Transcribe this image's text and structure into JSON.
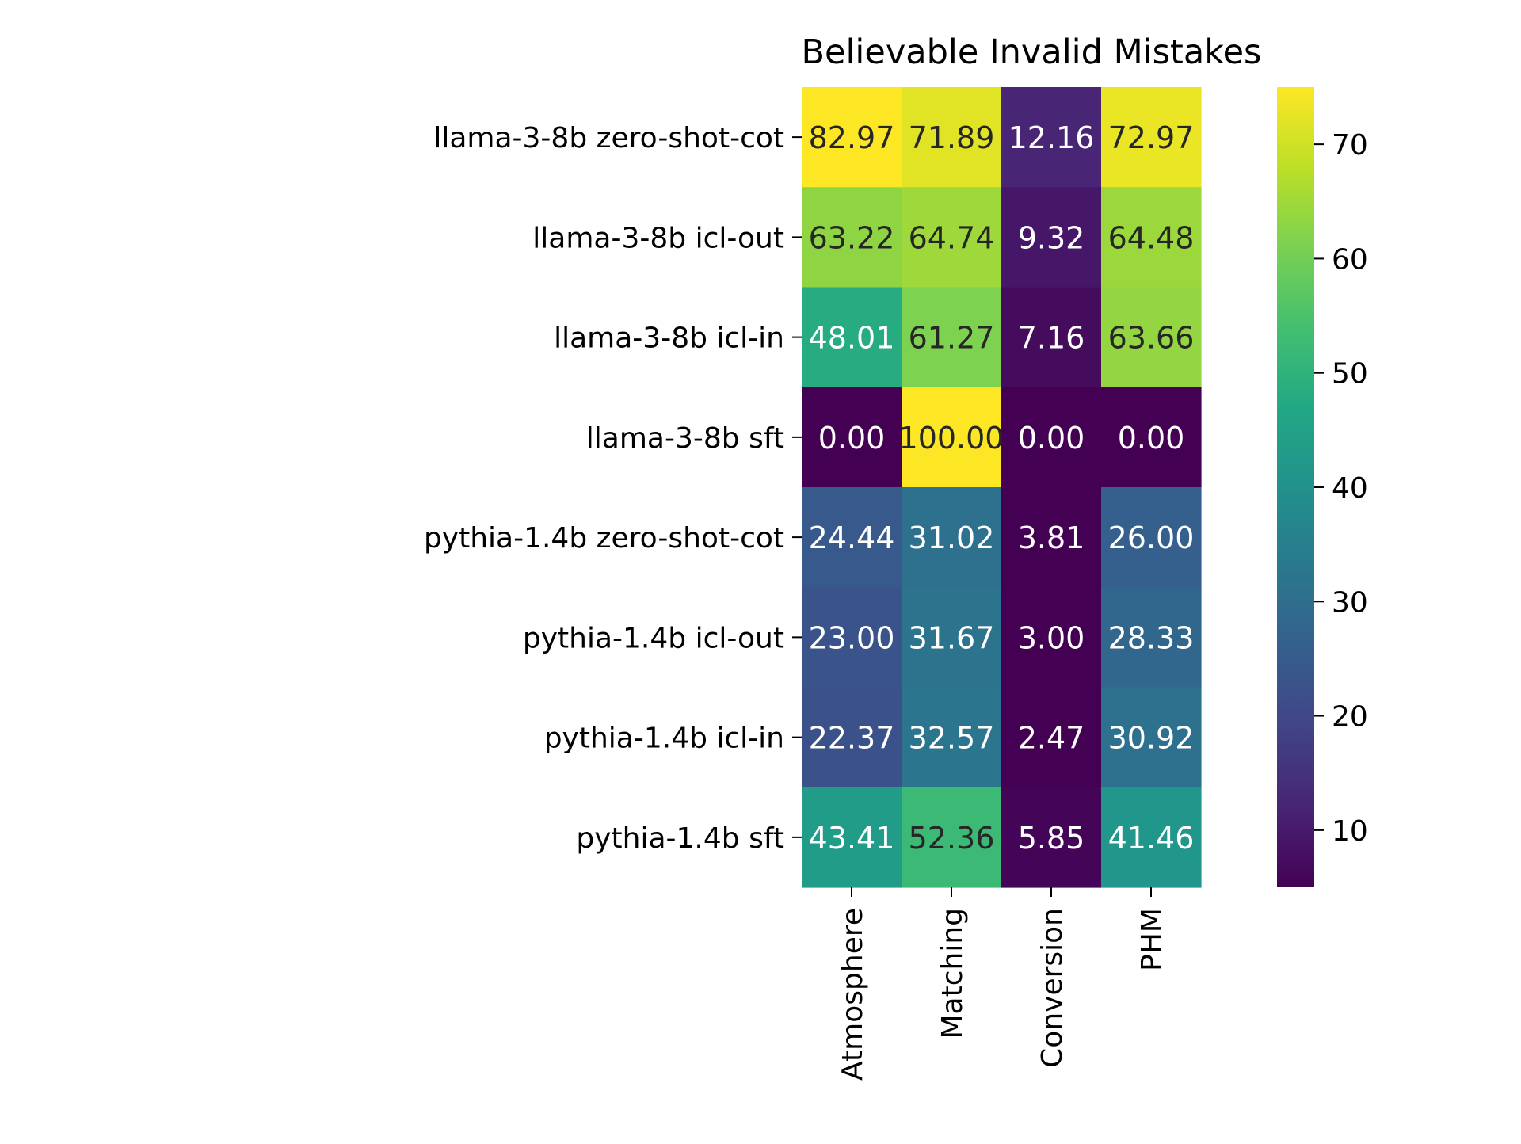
{
  "chart_data": {
    "type": "heatmap",
    "title": "Believable Invalid Mistakes",
    "xlabel": "",
    "ylabel": "",
    "rows": [
      "llama-3-8b zero-shot-cot",
      "llama-3-8b icl-out",
      "llama-3-8b icl-in",
      "llama-3-8b sft",
      "pythia-1.4b zero-shot-cot",
      "pythia-1.4b icl-out",
      "pythia-1.4b icl-in",
      "pythia-1.4b sft"
    ],
    "columns": [
      "Atmosphere",
      "Matching",
      "Conversion",
      "PHM"
    ],
    "values": [
      [
        82.97,
        71.89,
        12.16,
        72.97
      ],
      [
        63.22,
        64.74,
        9.32,
        64.48
      ],
      [
        48.01,
        61.27,
        7.16,
        63.66
      ],
      [
        0.0,
        100.0,
        0.0,
        0.0
      ],
      [
        24.44,
        31.02,
        3.81,
        26.0
      ],
      [
        23.0,
        31.67,
        3.0,
        28.33
      ],
      [
        22.37,
        32.57,
        2.47,
        30.92
      ],
      [
        43.41,
        52.36,
        5.85,
        41.46
      ]
    ],
    "value_format": "2 decimals",
    "colormap": "viridis",
    "color_range": [
      5,
      75
    ],
    "colorbar_ticks": [
      10,
      20,
      30,
      40,
      50,
      60,
      70
    ],
    "colorbar_position": "right",
    "x_tick_rotation": "vertical",
    "grid": false
  }
}
